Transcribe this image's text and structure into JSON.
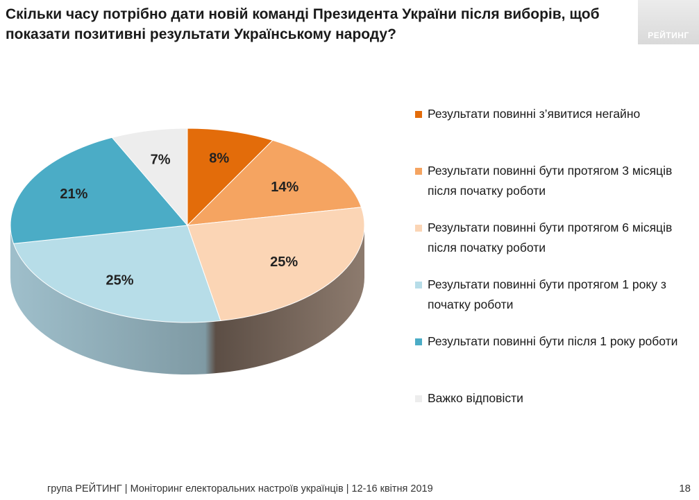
{
  "title": "Скільки часу потрібно дати новій команді Президента України після виборів, щоб показати позитивні результати Українському народу?",
  "logo": "РЕЙТИНГ",
  "footer": "група РЕЙТИНГ | Моніторинг електоральних настроїв українців  |  12-16 квітня 2019",
  "page_number": "18",
  "chart_data": {
    "type": "pie",
    "style": "3d",
    "categories": [
      "Результати повинні з’явитися негайно",
      "Результати повинні бути протягом 3 місяців після початку роботи",
      "Результати повинні бути протягом 6 місяців після початку роботи",
      "Результати повинні бути протягом 1 року з початку роботи",
      "Результати повинні бути після 1 року роботи",
      "Важко відповісти"
    ],
    "values": [
      8,
      14,
      25,
      25,
      21,
      7
    ],
    "value_labels": [
      "8%",
      "14%",
      "25%",
      "25%",
      "21%",
      "7%"
    ],
    "colors": [
      "#e36c0a",
      "#f5a461",
      "#fbd5b5",
      "#b7dde8",
      "#4bacc6",
      "#ededed"
    ],
    "legend_position": "right"
  }
}
